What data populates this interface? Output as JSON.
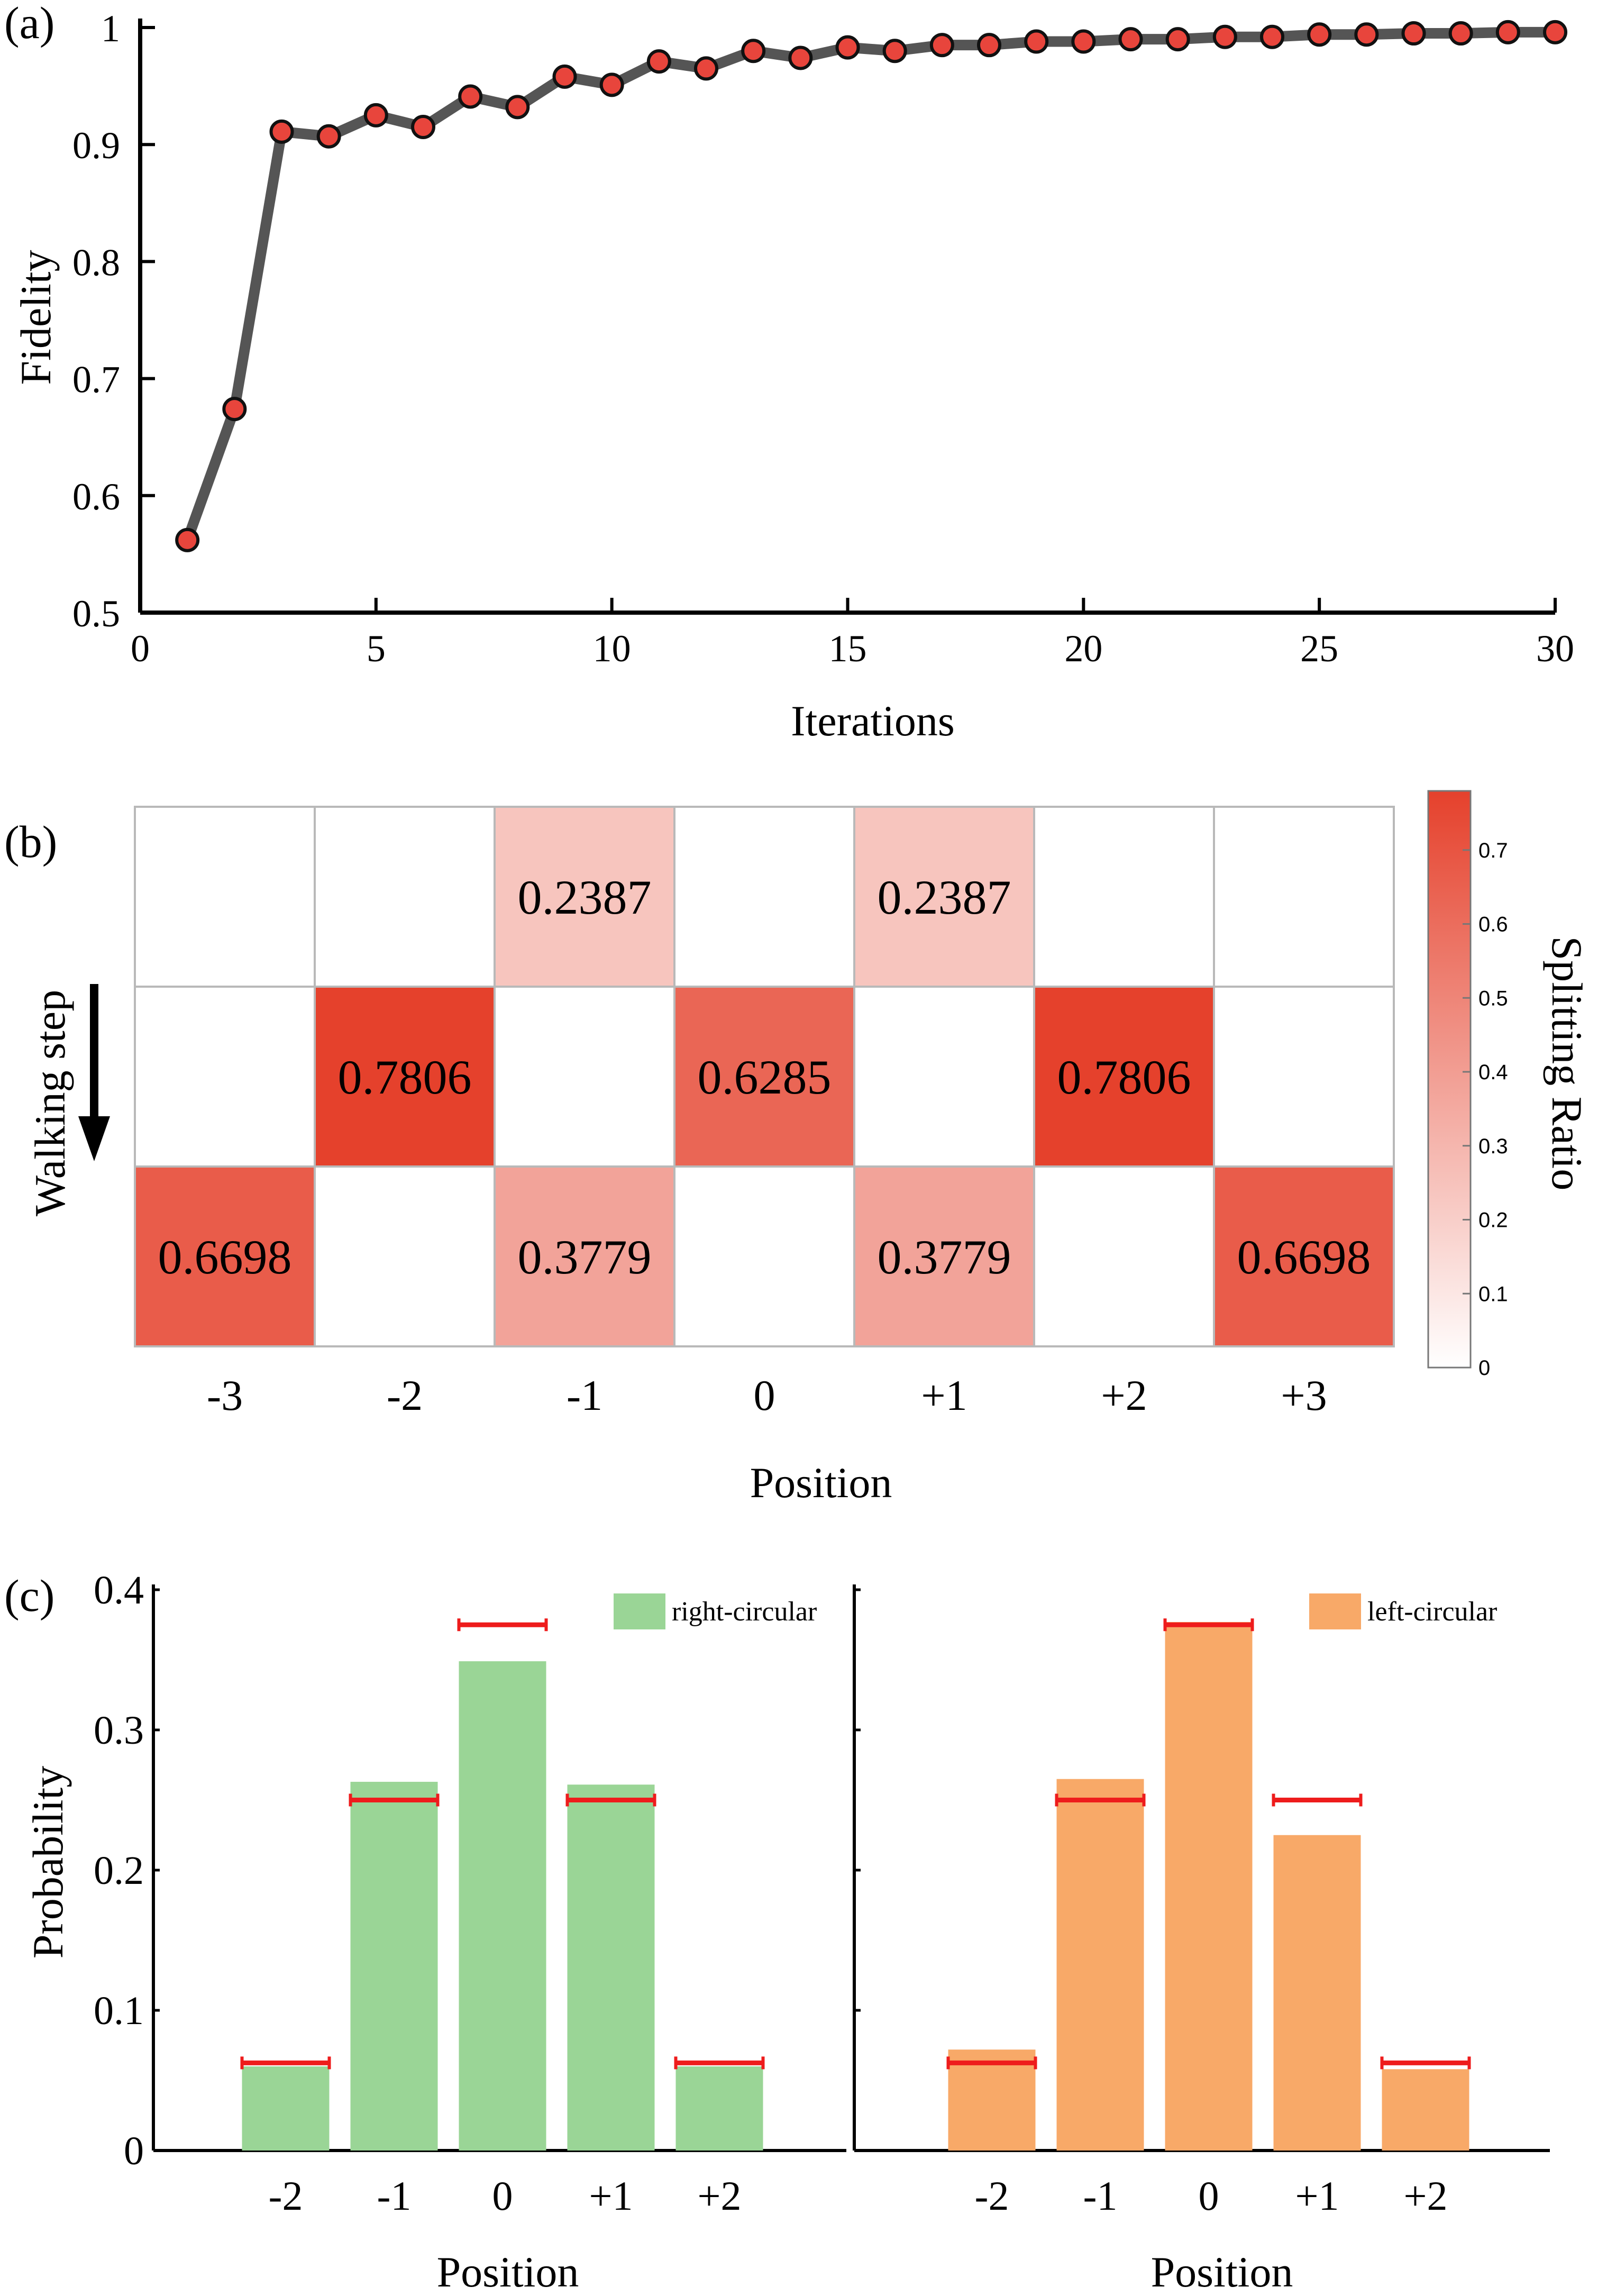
{
  "chart_data": [
    {
      "panel": "(a)",
      "type": "line",
      "title": "",
      "xlabel": "Iterations",
      "ylabel": "Fidelity",
      "xlim": [
        0,
        30
      ],
      "ylim": [
        0.5,
        1
      ],
      "xticks": [
        0,
        5,
        10,
        15,
        20,
        25,
        30
      ],
      "yticks": [
        0.5,
        0.6,
        0.7,
        0.8,
        0.9,
        1
      ],
      "ytick_labels": [
        "0.5",
        "0.6",
        "0.7",
        "0.8",
        "0.9",
        "1"
      ],
      "line_color": "#555555",
      "marker_color": "#e8453c",
      "x": [
        1,
        2,
        3,
        4,
        5,
        6,
        7,
        8,
        9,
        10,
        11,
        12,
        13,
        14,
        15,
        16,
        17,
        18,
        19,
        20,
        21,
        22,
        23,
        24,
        25,
        26,
        27,
        28,
        29,
        30
      ],
      "y": [
        0.562,
        0.674,
        0.911,
        0.907,
        0.925,
        0.915,
        0.941,
        0.932,
        0.958,
        0.951,
        0.971,
        0.965,
        0.98,
        0.974,
        0.983,
        0.98,
        0.985,
        0.985,
        0.988,
        0.988,
        0.99,
        0.99,
        0.992,
        0.992,
        0.994,
        0.994,
        0.995,
        0.995,
        0.996,
        0.996
      ]
    },
    {
      "panel": "(b)",
      "type": "heatmap",
      "xlabel": "Position",
      "ylabel": "Walking step",
      "colorbar_label": "Splitting Ratio",
      "colorbar_range": [
        0,
        0.78
      ],
      "colorbar_ticks": [
        0,
        0.1,
        0.2,
        0.3,
        0.4,
        0.5,
        0.6,
        0.7
      ],
      "colorbar_tick_labels": [
        "0",
        "0.1",
        "0.2",
        "0.3",
        "0.4",
        "0.5",
        "0.6",
        "0.7"
      ],
      "color_low": "#ffffff",
      "color_high": "#e5412c",
      "columns": [
        "-3",
        "-2",
        "-1",
        "0",
        "+1",
        "+2",
        "+3"
      ],
      "rows": [
        [
          null,
          null,
          "0.2387",
          null,
          "0.2387",
          null,
          null
        ],
        [
          null,
          "0.7806",
          null,
          "0.6285",
          null,
          "0.7806",
          null
        ],
        [
          "0.6698",
          null,
          "0.3779",
          null,
          "0.3779",
          null,
          "0.6698"
        ]
      ]
    },
    {
      "panel": "(c)",
      "type": "bar",
      "ylabel": "Probability",
      "ylim": [
        0,
        0.4
      ],
      "yticks": [
        0,
        0.1,
        0.2,
        0.3,
        0.4
      ],
      "ytick_labels": [
        "0",
        "0.1",
        "0.2",
        "0.3",
        "0.4"
      ],
      "theory_color": "#ee1c1c",
      "subplots": [
        {
          "legend": "right-circular",
          "color": "#9ad596",
          "xlabel": "Position",
          "categories": [
            "-2",
            "-1",
            "0",
            "+1",
            "+2"
          ],
          "values": [
            0.06,
            0.263,
            0.349,
            0.261,
            0.06
          ],
          "theory": [
            0.0625,
            0.25,
            0.375,
            0.25,
            0.0625
          ]
        },
        {
          "legend": "left-circular",
          "color": "#f8a968",
          "xlabel": "Position",
          "categories": [
            "-2",
            "-1",
            "0",
            "+1",
            "+2"
          ],
          "values": [
            0.072,
            0.265,
            0.377,
            0.225,
            0.058
          ],
          "theory": [
            0.0625,
            0.25,
            0.375,
            0.25,
            0.0625
          ]
        }
      ]
    }
  ]
}
